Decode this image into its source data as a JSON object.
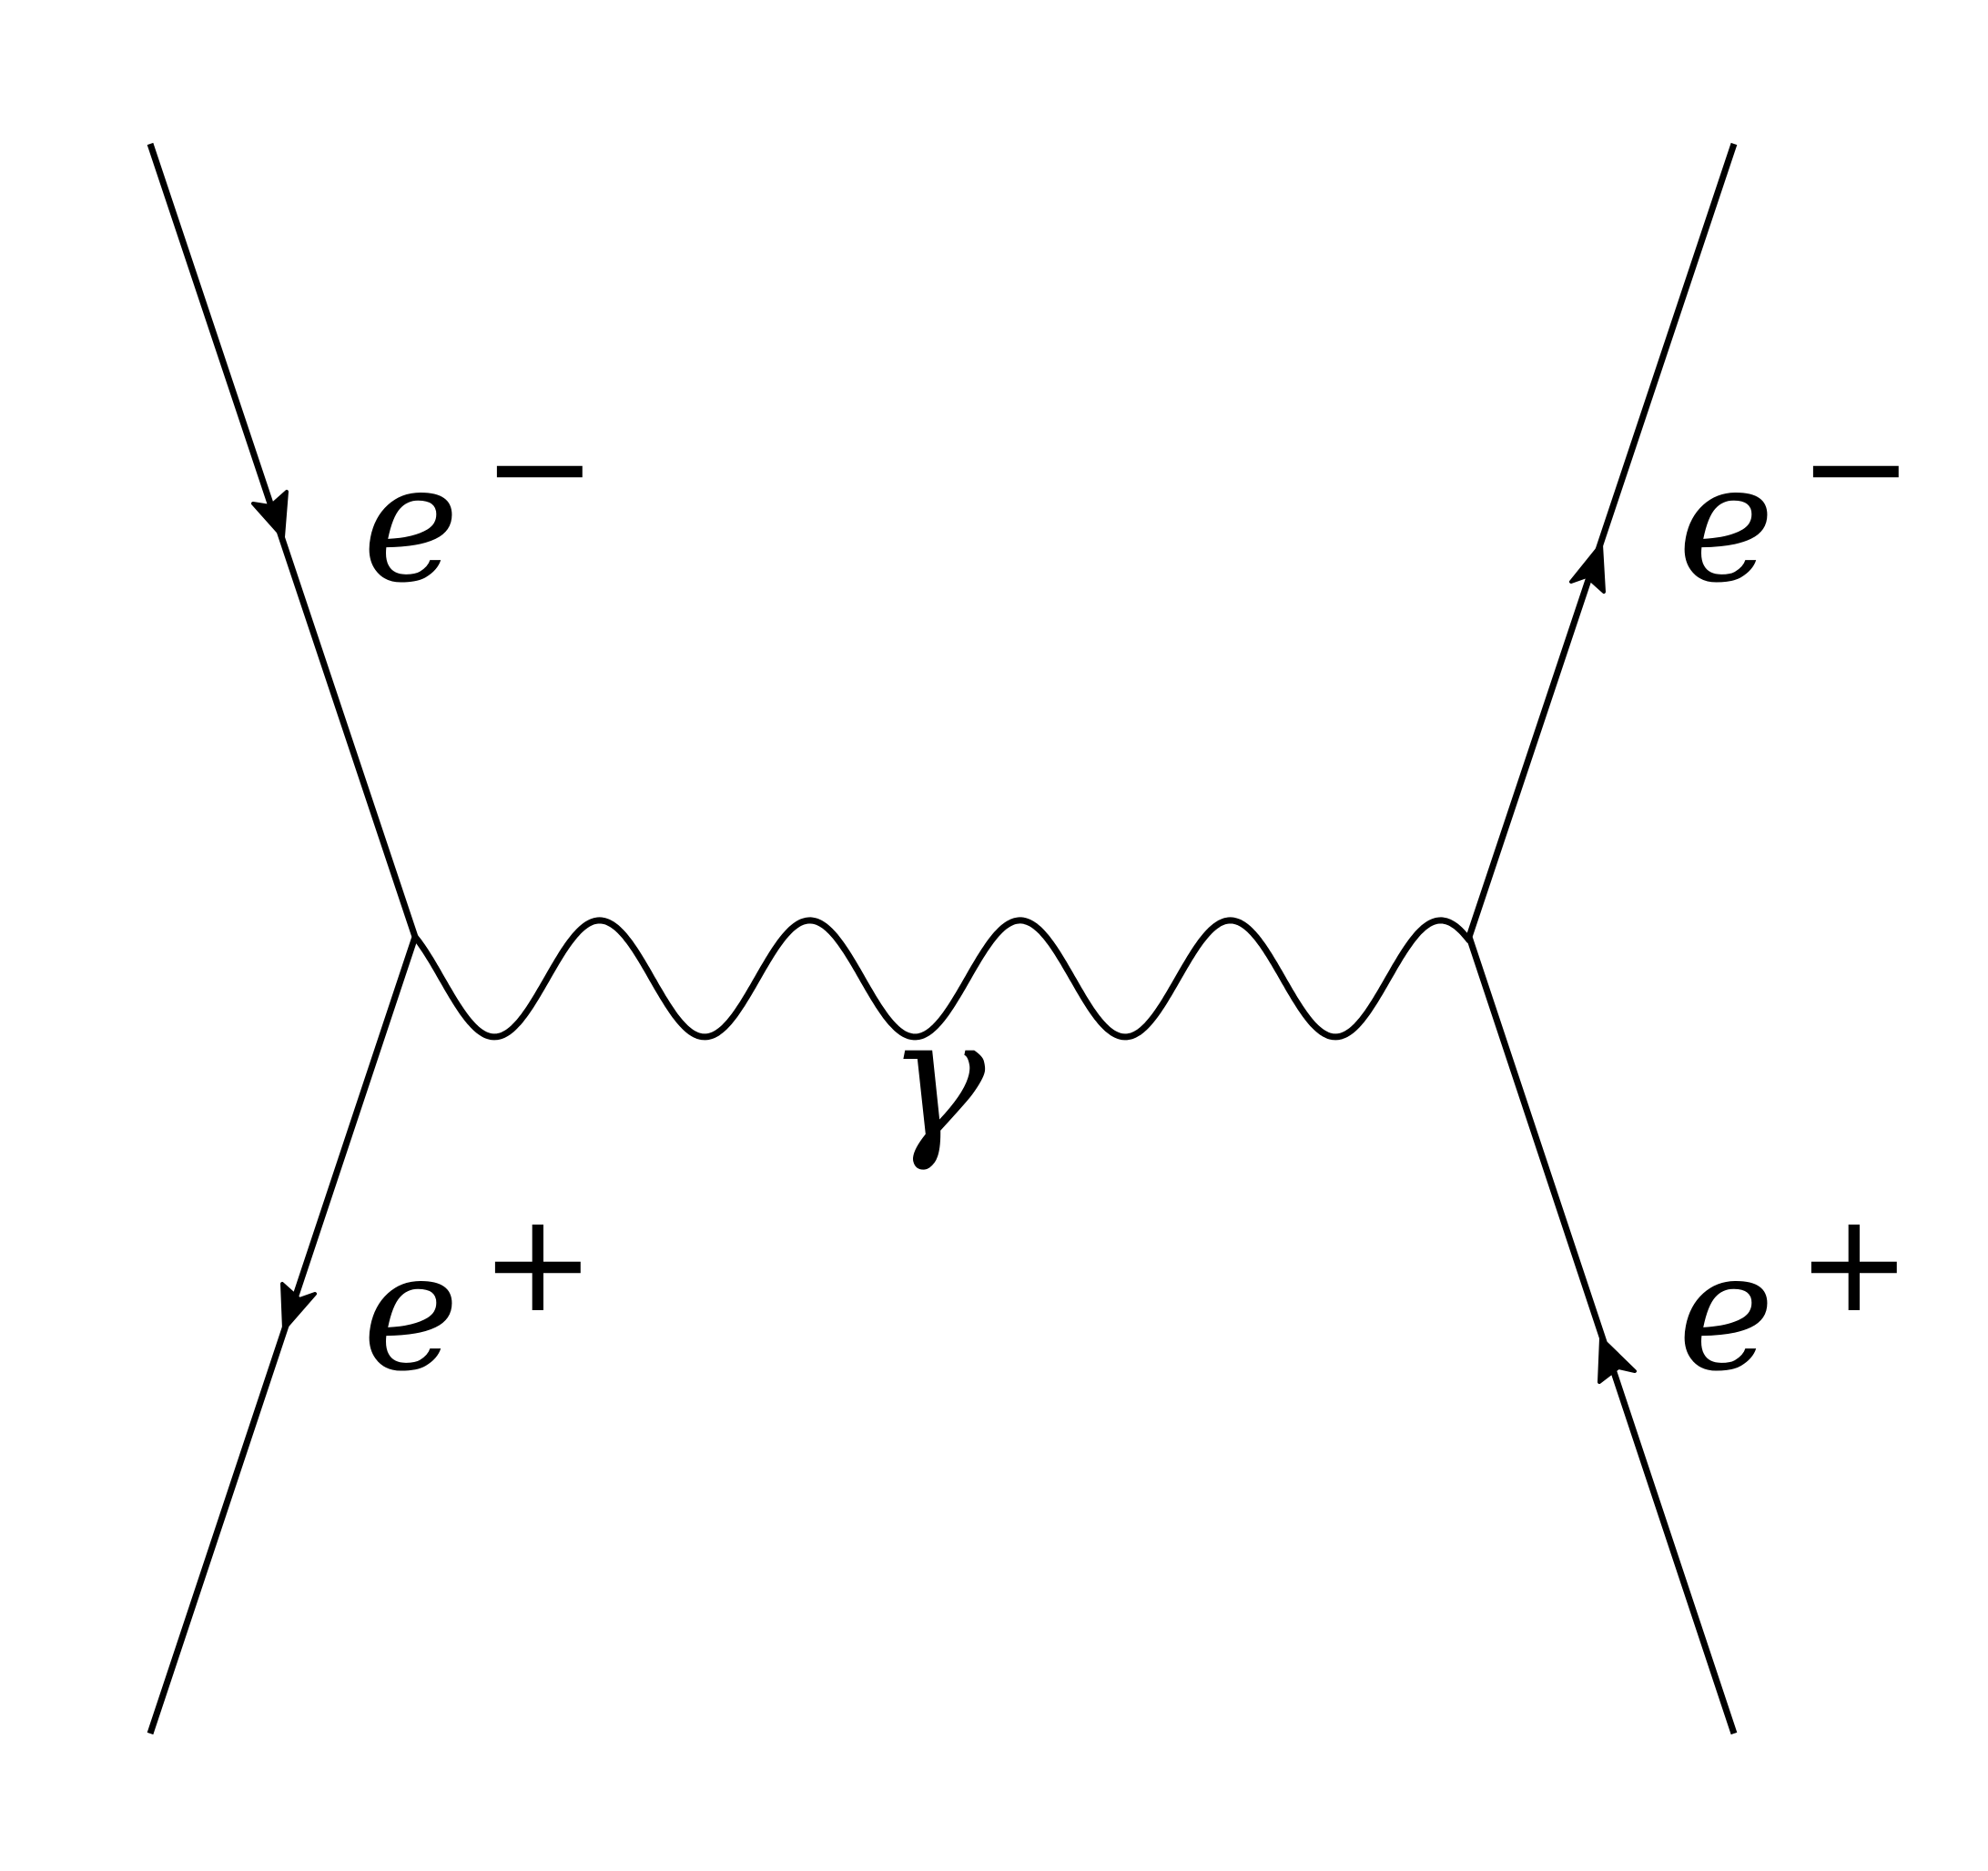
{
  "diagram": {
    "line_color": "#000000",
    "background": "#ffffff",
    "particles": {
      "top_left": {
        "symbol": "e",
        "charge": "−"
      },
      "bottom_left": {
        "symbol": "e",
        "charge": "+"
      },
      "top_right": {
        "symbol": "e",
        "charge": "−"
      },
      "bottom_right": {
        "symbol": "e",
        "charge": "+"
      }
    },
    "propagator": {
      "symbol": "γ"
    }
  }
}
